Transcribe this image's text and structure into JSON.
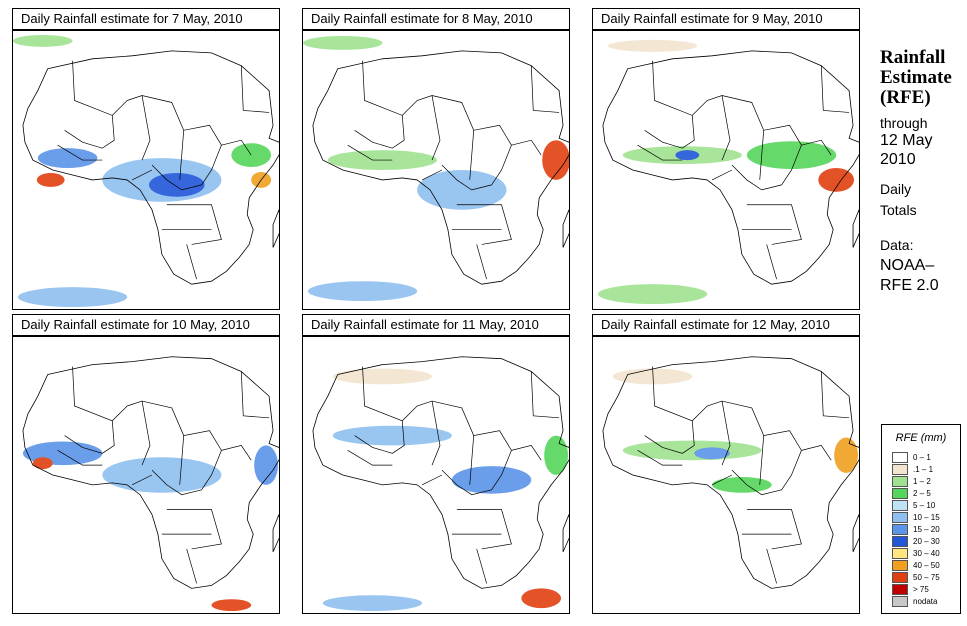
{
  "panels": [
    {
      "title": "Daily Rainfall estimate for  7 May, 2010"
    },
    {
      "title": "Daily Rainfall estimate for  8 May, 2010"
    },
    {
      "title": "Daily Rainfall estimate for  9 May, 2010"
    },
    {
      "title": "Daily Rainfall estimate for  10 May, 2010"
    },
    {
      "title": "Daily Rainfall estimate for  11 May, 2010"
    },
    {
      "title": "Daily Rainfall estimate for  12 May, 2010"
    }
  ],
  "side": {
    "title_line1": "Rainfall",
    "title_line2": "Estimate",
    "title_line3": "(RFE)",
    "through": "through",
    "date_line1": "12 May",
    "date_line2": "2010",
    "daily": "Daily",
    "totals": "Totals",
    "data_label": "Data:",
    "source_line1": "NOAA–",
    "source_line2": "RFE 2.0"
  },
  "legend": {
    "title": "RFE (mm)",
    "items": [
      {
        "label": "0 – 1",
        "color": "#ffffff"
      },
      {
        "label": ".1 – 1",
        "color": "#f2e4cf"
      },
      {
        "label": "1 – 2",
        "color": "#9fe28f"
      },
      {
        "label": "2 – 5",
        "color": "#55d65a"
      },
      {
        "label": "5 – 10",
        "color": "#bfe2f5"
      },
      {
        "label": "10 – 15",
        "color": "#8fbff0"
      },
      {
        "label": "15 – 20",
        "color": "#5b94e8"
      },
      {
        "label": "20 – 30",
        "color": "#2156d9"
      },
      {
        "label": "30 – 40",
        "color": "#ffe680"
      },
      {
        "label": "40 – 50",
        "color": "#f0a020"
      },
      {
        "label": "50 – 75",
        "color": "#e04010"
      },
      {
        "label": "> 75",
        "color": "#c00000"
      },
      {
        "label": "nodata",
        "color": "#c8c8c8"
      }
    ]
  }
}
